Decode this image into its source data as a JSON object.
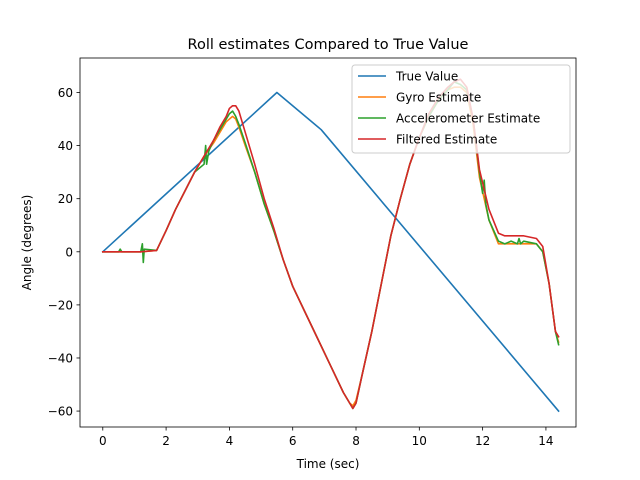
{
  "chart_data": {
    "type": "line",
    "title": "Roll estimates Compared to True Value",
    "xlabel": "Time (sec)",
    "ylabel": "Angle (degrees)",
    "xlim": [
      -0.72,
      14.95
    ],
    "ylim": [
      -66,
      73
    ],
    "xticks": [
      0,
      2,
      4,
      6,
      8,
      10,
      12,
      14
    ],
    "yticks": [
      -60,
      -40,
      -20,
      0,
      20,
      40,
      60
    ],
    "grid": false,
    "legend_position": "top-right",
    "series": [
      {
        "name": "True Value",
        "color": "#1f77b4",
        "x": [
          0,
          5.5,
          6.9,
          14.4
        ],
        "y": [
          0,
          60,
          46,
          -60
        ]
      },
      {
        "name": "Gyro Estimate",
        "color": "#ff7f0e",
        "x": [
          0,
          0.5,
          1.2,
          1.7,
          2.0,
          2.3,
          2.6,
          2.9,
          3.2,
          3.5,
          3.7,
          3.9,
          4.0,
          4.1,
          4.2,
          4.3,
          4.5,
          4.8,
          5.1,
          5.4,
          5.7,
          6.0,
          6.4,
          6.8,
          7.2,
          7.6,
          7.8,
          7.9,
          8.0,
          8.2,
          8.5,
          8.8,
          9.1,
          9.4,
          9.7,
          10.0,
          10.3,
          10.6,
          10.9,
          11.1,
          11.3,
          11.5,
          11.7,
          11.9,
          12.2,
          12.5,
          12.7,
          12.9,
          13.3,
          13.7,
          13.9,
          14.1,
          14.3,
          14.4
        ],
        "y": [
          0,
          0,
          0,
          0.5,
          8,
          16,
          23,
          30,
          36,
          41,
          45,
          49,
          50,
          51,
          50,
          47,
          40,
          30,
          18,
          8,
          -3,
          -13,
          -23,
          -33,
          -43,
          -53,
          -57,
          -58,
          -56,
          -46,
          -30,
          -12,
          6,
          20,
          33,
          43,
          51,
          57,
          61,
          62,
          62,
          60,
          48,
          28,
          12,
          3,
          3,
          3,
          3,
          3,
          0,
          -12,
          -30,
          -34
        ]
      },
      {
        "name": "Accelerometer Estimate",
        "color": "#2ca02c",
        "x": [
          0,
          0.5,
          0.55,
          0.6,
          1.2,
          1.25,
          1.28,
          1.31,
          1.7,
          2.0,
          2.3,
          2.6,
          2.9,
          3.2,
          3.25,
          3.28,
          3.35,
          3.5,
          3.7,
          3.9,
          4.0,
          4.1,
          4.2,
          4.3,
          4.5,
          4.8,
          5.1,
          5.4,
          5.7,
          6.0,
          6.4,
          6.8,
          7.2,
          7.6,
          7.8,
          7.9,
          8.0,
          8.2,
          8.5,
          8.8,
          9.1,
          9.4,
          9.7,
          10.0,
          10.3,
          10.6,
          10.9,
          11.1,
          11.3,
          11.5,
          11.7,
          11.9,
          12.0,
          12.05,
          12.1,
          12.2,
          12.5,
          12.7,
          12.9,
          13.1,
          13.15,
          13.2,
          13.3,
          13.7,
          13.9,
          14.1,
          14.3,
          14.4
        ],
        "y": [
          0,
          0,
          1,
          0,
          0,
          3,
          -4,
          1,
          0.5,
          8,
          16,
          23,
          30,
          33,
          40,
          33,
          38,
          42,
          46,
          50,
          52,
          53,
          51,
          48,
          41,
          30,
          18,
          8,
          -3,
          -13,
          -23,
          -33,
          -43,
          -53,
          -57,
          -59,
          -57,
          -46,
          -30,
          -12,
          6,
          20,
          33,
          43,
          51,
          57,
          61,
          64,
          63,
          61,
          50,
          30,
          22,
          27,
          18,
          12,
          4,
          3,
          4,
          3,
          5,
          3,
          4,
          3,
          0,
          -12,
          -30,
          -35
        ]
      },
      {
        "name": "Filtered Estimate",
        "color": "#d62728",
        "x": [
          0,
          0.5,
          1.2,
          1.7,
          2.0,
          2.3,
          2.6,
          2.9,
          3.2,
          3.5,
          3.7,
          3.9,
          4.0,
          4.1,
          4.2,
          4.3,
          4.5,
          4.8,
          5.1,
          5.4,
          5.7,
          6.0,
          6.4,
          6.8,
          7.2,
          7.6,
          7.8,
          7.9,
          8.0,
          8.2,
          8.5,
          8.8,
          9.1,
          9.4,
          9.7,
          10.0,
          10.3,
          10.6,
          10.9,
          11.1,
          11.3,
          11.5,
          11.7,
          11.9,
          12.2,
          12.5,
          12.7,
          12.9,
          13.3,
          13.7,
          13.9,
          14.1,
          14.3,
          14.4
        ],
        "y": [
          0,
          0,
          0,
          0.5,
          8,
          16,
          23,
          30,
          36,
          42,
          47,
          51,
          54,
          55,
          55,
          53,
          45,
          33,
          20,
          9,
          -3,
          -13,
          -23,
          -33,
          -43,
          -53,
          -57,
          -59,
          -57,
          -46,
          -30,
          -12,
          6,
          20,
          33,
          43,
          52,
          58,
          62,
          64,
          65,
          62,
          50,
          31,
          16,
          7,
          6,
          6,
          6,
          5,
          2,
          -12,
          -30,
          -32
        ]
      }
    ]
  }
}
